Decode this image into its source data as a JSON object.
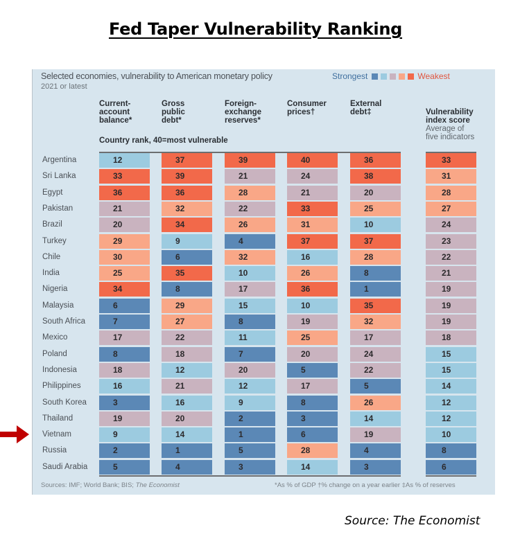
{
  "page": {
    "title": "Fed Taper Vulnerability Ranking",
    "source": "Source: The Economist",
    "highlight_arrow_country": "Vietnam"
  },
  "chart_data": {
    "type": "table",
    "title": "Selected economies, vulnerability to American monetary policy",
    "subtitle": "2021 or latest",
    "legend": {
      "low_label": "Strongest",
      "high_label": "Weakest",
      "position": "top-right",
      "bins": [
        {
          "range": [
            1,
            8
          ],
          "color": "#5b88b6"
        },
        {
          "range": [
            9,
            16
          ],
          "color": "#9ccbe0"
        },
        {
          "range": [
            17,
            24
          ],
          "color": "#c9b3bf"
        },
        {
          "range": [
            25,
            32
          ],
          "color": "#f9a787"
        },
        {
          "range": [
            33,
            40
          ],
          "color": "#f2694a"
        }
      ]
    },
    "rank_note": "Country rank, 40=most  vulnerable",
    "columns": [
      {
        "key": "current_account",
        "label": "Current-\naccount\nbalance*"
      },
      {
        "key": "gross_public_debt",
        "label": "Gross\npublic\ndebt*"
      },
      {
        "key": "fx_reserves",
        "label": "Foreign-\nexchange\nreserves*"
      },
      {
        "key": "consumer_prices",
        "label": "Consumer\nprices†"
      },
      {
        "key": "external_debt",
        "label": "External\ndebt‡"
      },
      {
        "key": "vulnerability_score",
        "label": "Vulnerability\nindex score",
        "note": "Average of\nfive indicators"
      }
    ],
    "rows": [
      {
        "country": "Argentina",
        "values": [
          12,
          37,
          39,
          40,
          36,
          33
        ]
      },
      {
        "country": "Sri Lanka",
        "values": [
          33,
          39,
          21,
          24,
          38,
          31
        ]
      },
      {
        "country": "Egypt",
        "values": [
          36,
          36,
          28,
          21,
          20,
          28
        ]
      },
      {
        "country": "Pakistan",
        "values": [
          21,
          32,
          22,
          33,
          25,
          27
        ]
      },
      {
        "country": "Brazil",
        "values": [
          20,
          34,
          26,
          31,
          10,
          24
        ]
      },
      {
        "country": "Turkey",
        "values": [
          29,
          9,
          4,
          37,
          37,
          23
        ]
      },
      {
        "country": "Chile",
        "values": [
          30,
          6,
          32,
          16,
          28,
          22
        ]
      },
      {
        "country": "India",
        "values": [
          25,
          35,
          10,
          26,
          8,
          21
        ]
      },
      {
        "country": "Nigeria",
        "values": [
          34,
          8,
          17,
          36,
          1,
          19
        ]
      },
      {
        "country": "Malaysia",
        "values": [
          6,
          29,
          15,
          10,
          35,
          19
        ]
      },
      {
        "country": "South Africa",
        "values": [
          7,
          27,
          8,
          19,
          32,
          19
        ]
      },
      {
        "country": "Mexico",
        "values": [
          17,
          22,
          11,
          25,
          17,
          18
        ]
      },
      {
        "country": "Poland",
        "values": [
          8,
          18,
          7,
          20,
          24,
          15
        ]
      },
      {
        "country": "Indonesia",
        "values": [
          18,
          12,
          20,
          5,
          22,
          15
        ]
      },
      {
        "country": "Philippines",
        "values": [
          16,
          21,
          12,
          17,
          5,
          14
        ]
      },
      {
        "country": "South Korea",
        "values": [
          3,
          16,
          9,
          8,
          26,
          12
        ]
      },
      {
        "country": "Thailand",
        "values": [
          19,
          20,
          2,
          3,
          14,
          12
        ]
      },
      {
        "country": "Vietnam",
        "values": [
          9,
          14,
          1,
          6,
          19,
          10
        ]
      },
      {
        "country": "Russia",
        "values": [
          2,
          1,
          5,
          28,
          4,
          8
        ]
      },
      {
        "country": "Saudi Arabia",
        "values": [
          5,
          4,
          3,
          14,
          3,
          6
        ]
      }
    ],
    "footer_sources": "Sources: IMF; World Bank; BIS; ",
    "footer_sources_italic": "The Economist",
    "footnotes": "*As % of GDP   †% change on a year earlier   ‡As % of reserves"
  }
}
